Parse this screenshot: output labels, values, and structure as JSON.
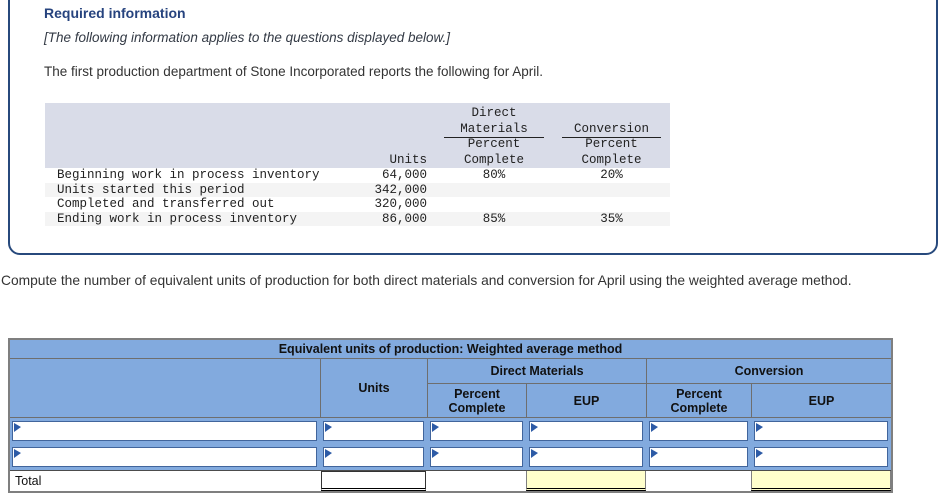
{
  "required_info": {
    "title": "Required information",
    "note": "[The following information applies to the questions displayed below.]",
    "intro": "The first production department of Stone Incorporated reports the following for April."
  },
  "source_table": {
    "headers": {
      "units": "Units",
      "direct_line1": "Direct",
      "direct_line2": "Materials",
      "conversion": "Conversion",
      "percent": "Percent",
      "complete": "Complete"
    },
    "rows": [
      {
        "label": "Beginning work in process inventory",
        "units": "64,000",
        "dm_percent": "80%",
        "conv_percent": "20%"
      },
      {
        "label": "Units started this period",
        "units": "342,000",
        "dm_percent": "",
        "conv_percent": ""
      },
      {
        "label": "Completed and transferred out",
        "units": "320,000",
        "dm_percent": "",
        "conv_percent": ""
      },
      {
        "label": "Ending work in process inventory",
        "units": "86,000",
        "dm_percent": "85%",
        "conv_percent": "35%"
      }
    ]
  },
  "instruction": "Compute the number of equivalent units of production for both direct materials and conversion for April using the weighted average method.",
  "answer_table": {
    "title": "Equivalent units of production: Weighted average method",
    "units_header": "Units",
    "dm_header": "Direct Materials",
    "conversion_header": "Conversion",
    "percent_complete_header": "Percent Complete",
    "eup_header": "EUP",
    "total_label": "Total",
    "empty_input_rows": 2,
    "input_values": {
      "row1": {
        "description": "",
        "units": "",
        "dm_percent": "",
        "dm_eup": "",
        "conv_percent": "",
        "conv_eup": ""
      },
      "row2": {
        "description": "",
        "units": "",
        "dm_percent": "",
        "dm_eup": "",
        "conv_percent": "",
        "conv_eup": ""
      },
      "total": {
        "units": "",
        "dm_eup": "",
        "conv_eup": ""
      }
    }
  },
  "colors": {
    "header-blue": "#82aade",
    "cell-border-blue": "#41659c",
    "marker-blue": "#2d5ba6",
    "total-highlight": "#ffffcc",
    "source-header-bg": "#d9dce8",
    "source-alt-row": "#f4f4f4",
    "card-border": "#27497c",
    "title-blue": "#26437e",
    "table-outer-border": "#7f7f7f"
  }
}
